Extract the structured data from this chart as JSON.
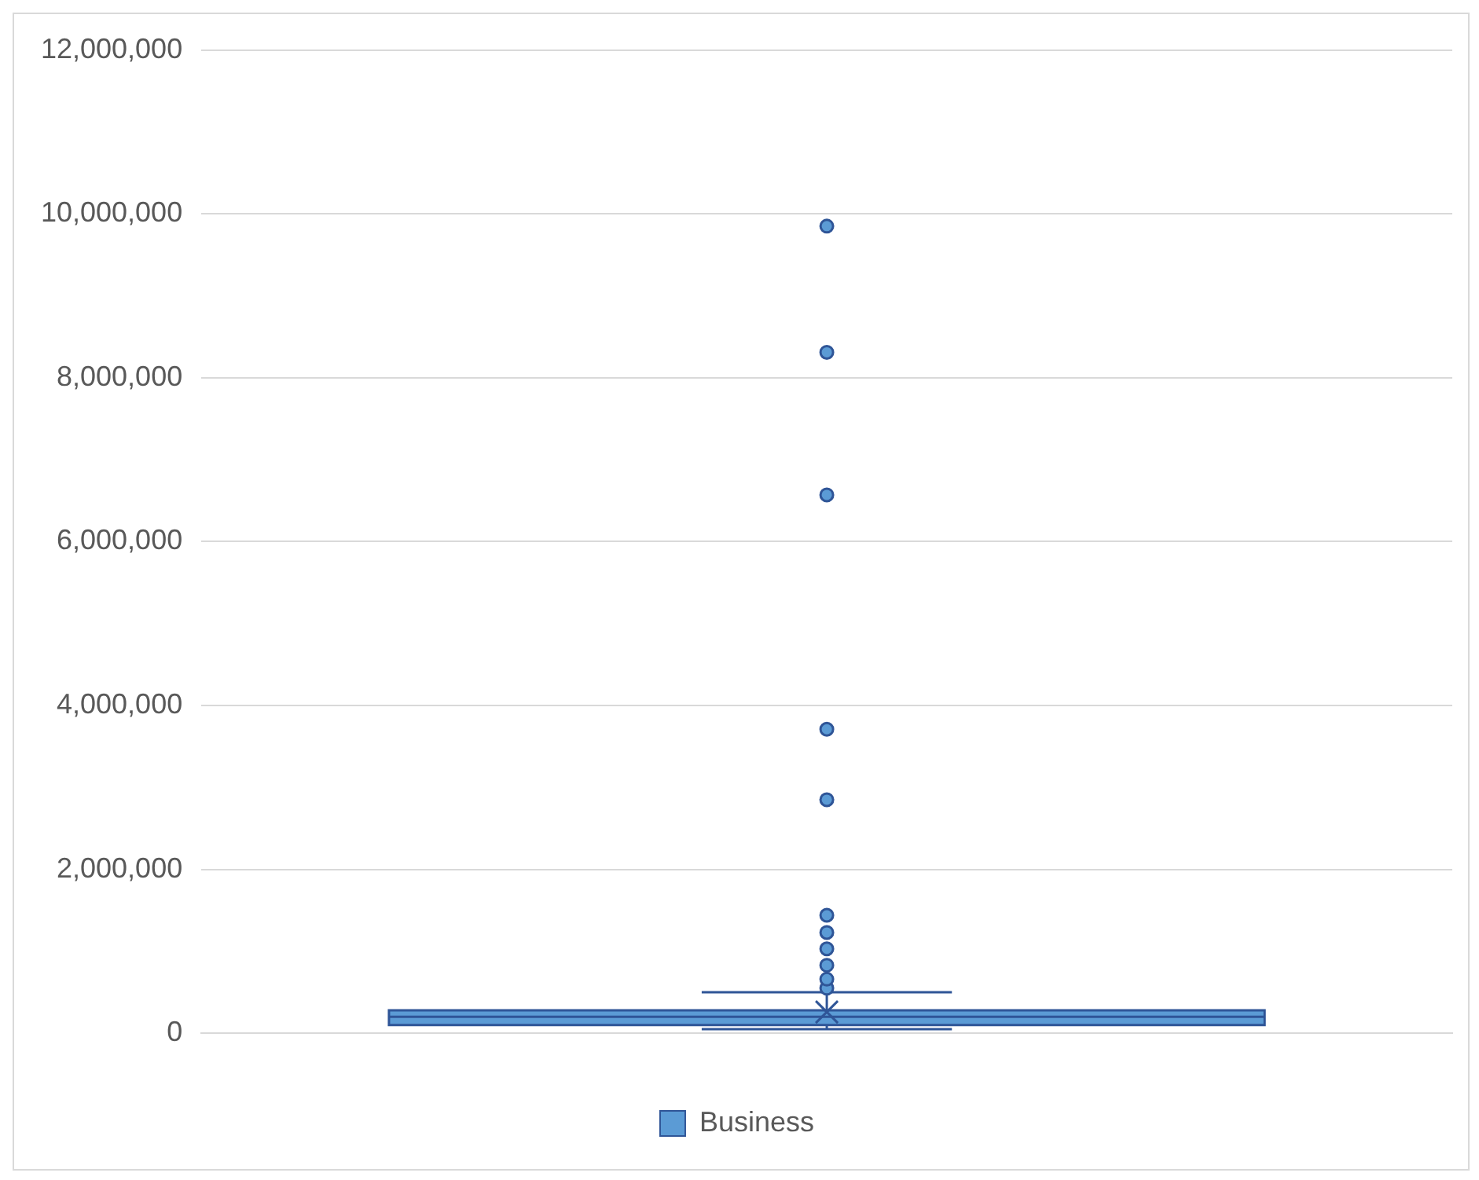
{
  "chart_data": {
    "type": "box",
    "categories": [
      null
    ],
    "series": [
      {
        "name": "Business",
        "color": "#5b9bd5",
        "boxes": [
          {
            "low": 50000,
            "q1": 100000,
            "median": 200000,
            "q3": 280000,
            "high": 500000,
            "mean": 260000,
            "outliers": [
              550000,
              660000,
              830000,
              1030000,
              1230000,
              1440000,
              2850000,
              3710000,
              6570000,
              8310000,
              9850000
            ]
          }
        ]
      }
    ],
    "ylim": [
      0,
      12000000
    ],
    "yticks": [
      0,
      {
        "value": 2000000,
        "label": "2,000,000"
      },
      {
        "value": 4000000,
        "label": "4,000,000"
      },
      {
        "value": 6000000,
        "label": "6,000,000"
      },
      {
        "value": 8000000,
        "label": "8,000,000"
      },
      {
        "value": 10000000,
        "label": "10,000,000"
      },
      {
        "value": 12000000,
        "label": "12,000,000"
      }
    ],
    "grid": "y",
    "legend": "bottom",
    "marker": "circle"
  }
}
